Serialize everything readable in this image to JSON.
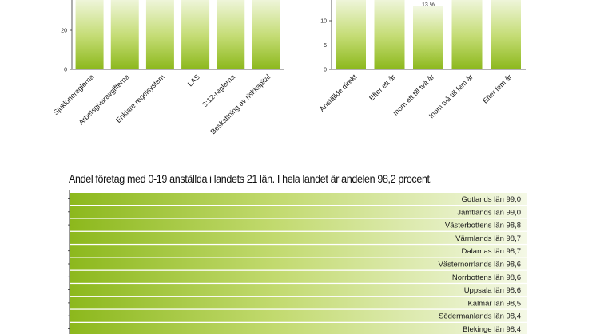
{
  "chart_data": [
    {
      "type": "bar",
      "categories": [
        "Sjuklöneregler­na",
        "Arbetsgivaravgifterna",
        "Enklare regelsystem",
        "LAS",
        "3:12-reglerna",
        "Beskattning av riskkapital"
      ],
      "yticks": [
        0,
        20
      ],
      "values": [
        null,
        null,
        null,
        null,
        null,
        null
      ],
      "colors": {
        "dark": "#8cb81c",
        "light": "#f2f7e2"
      }
    },
    {
      "type": "bar",
      "categories": [
        "Anställde direkt",
        "Efter ett år",
        "Inom ett till två år",
        "Inom två till fem år",
        "Efter fem år"
      ],
      "yticks": [
        0,
        5,
        10
      ],
      "data_labels": [
        "",
        "",
        "13 %",
        "",
        ""
      ],
      "values": [
        null,
        null,
        13,
        null,
        null
      ],
      "colors": {
        "dark": "#8cb81c",
        "light": "#f2f7e2"
      }
    },
    {
      "type": "bar",
      "orientation": "horizontal",
      "title": "Andel företag med 0-19 anställda i landets 21 län. I hela landet är andelen 98,2 procent.",
      "categories": [
        "Gotlands län",
        "Jämtlands län",
        "Västerbottens län",
        "Värmlands län",
        "Dalarnas län",
        "Västernorrlands län",
        "Norrbottens län",
        "Uppsala län",
        "Kalmar län",
        "Södermanlands län",
        "Blekinge län"
      ],
      "labels": [
        "Gotlands län 99,0",
        "Jämtlands län 99,0",
        "Västerbottens län 98,8",
        "Värmlands län 98,7",
        "Dalarnas län 98,7",
        "Västernorrlands län 98,6",
        "Norrbottens län 98,6",
        "Uppsala län 98,6",
        "Kalmar län 98,5",
        "Södermanlands län 98,4",
        "Blekinge län 98,4"
      ],
      "values": [
        99.0,
        99.0,
        98.8,
        98.7,
        98.7,
        98.6,
        98.6,
        98.6,
        98.5,
        98.4,
        98.4
      ],
      "colors": {
        "dark": "#8cb81c",
        "light": "#f2f7e2"
      }
    }
  ]
}
